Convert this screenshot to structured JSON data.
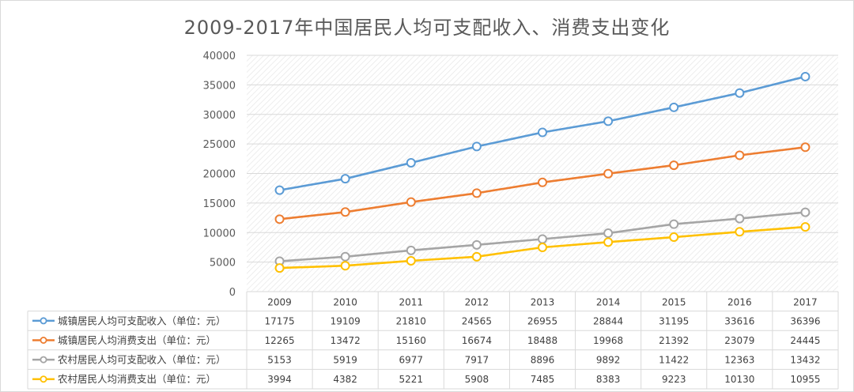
{
  "chart_data": {
    "type": "line",
    "title": "2009-2017年中国居民人均可支配收入、消费支出变化",
    "categories": [
      "2009",
      "2010",
      "2011",
      "2012",
      "2013",
      "2014",
      "2015",
      "2016",
      "2017"
    ],
    "y_ticks": [
      "0",
      "5000",
      "10000",
      "15000",
      "20000",
      "25000",
      "30000",
      "35000",
      "40000"
    ],
    "ylim": [
      0,
      40000
    ],
    "grid": true,
    "legend": "data-table",
    "series": [
      {
        "name": "城镇居民人均可支配收入（单位：元）",
        "color": "#5b9bd5",
        "values": [
          17175,
          19109,
          21810,
          24565,
          26955,
          28844,
          31195,
          33616,
          36396
        ]
      },
      {
        "name": "城镇居民人均消费支出（单位：元）",
        "color": "#ed7d31",
        "values": [
          12265,
          13472,
          15160,
          16674,
          18488,
          19968,
          21392,
          23079,
          24445
        ]
      },
      {
        "name": "农村居民人均可支配收入（单位：元）",
        "color": "#a5a5a5",
        "values": [
          5153,
          5919,
          6977,
          7917,
          8896,
          9892,
          11422,
          12363,
          13432
        ]
      },
      {
        "name": "农村居民人均消费支出（单位：元）",
        "color": "#ffc000",
        "values": [
          3994,
          4382,
          5221,
          5908,
          7485,
          8383,
          9223,
          10130,
          10955
        ]
      }
    ]
  }
}
